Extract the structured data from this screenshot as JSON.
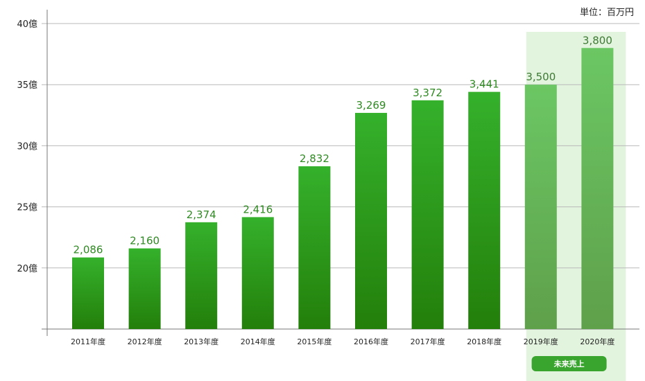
{
  "unit_label": "単位：百万円",
  "forecast_badge": "未来売上",
  "colors": {
    "actual_top": "#35b12c",
    "actual_bottom": "#237f0a",
    "forecast_top": "#6bc763",
    "forecast_bottom": "#5fa04b",
    "forecast_bg": "#e2f3de",
    "label_actual": "#2f8a22",
    "label_forecast": "#3d7a34",
    "badge": "#3aa52e",
    "grid": "#b9b9b9"
  },
  "chart_data": {
    "type": "bar",
    "categories": [
      "2011年度",
      "2012年度",
      "2013年度",
      "2014年度",
      "2015年度",
      "2016年度",
      "2017年度",
      "2018年度",
      "2019年度",
      "2020年度"
    ],
    "values": [
      2086,
      2160,
      2374,
      2416,
      2832,
      3269,
      3372,
      3441,
      3500,
      3800
    ],
    "value_labels": [
      "2,086",
      "2,160",
      "2,374",
      "2,416",
      "2,832",
      "3,269",
      "3,372",
      "3,441",
      "3,500",
      "3,800"
    ],
    "forecast": [
      false,
      false,
      false,
      false,
      false,
      false,
      false,
      false,
      true,
      true
    ],
    "yticks": [
      2000,
      2500,
      3000,
      3500,
      4000
    ],
    "ytick_labels": [
      "20億",
      "25億",
      "30億",
      "35億",
      "40億"
    ],
    "ylim": [
      1500,
      4000
    ],
    "grid": true
  }
}
